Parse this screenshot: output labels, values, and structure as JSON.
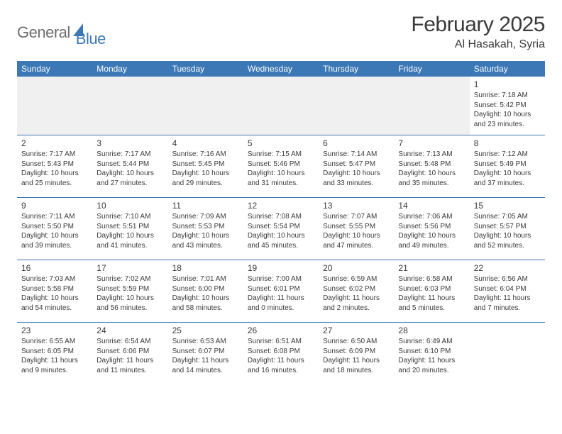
{
  "logo": {
    "part1": "General",
    "part2": "Blue"
  },
  "title": "February 2025",
  "location": "Al Hasakah, Syria",
  "colors": {
    "accent": "#3b78b5",
    "text": "#3a3a3a",
    "logo_gray": "#6e6e6e",
    "row1_bg": "#f0f0f0",
    "bg": "#ffffff"
  },
  "weekdays": [
    "Sunday",
    "Monday",
    "Tuesday",
    "Wednesday",
    "Thursday",
    "Friday",
    "Saturday"
  ],
  "weeks": [
    [
      null,
      null,
      null,
      null,
      null,
      null,
      {
        "n": "1",
        "sr": "Sunrise: 7:18 AM",
        "ss": "Sunset: 5:42 PM",
        "dl": "Daylight: 10 hours and 23 minutes."
      }
    ],
    [
      {
        "n": "2",
        "sr": "Sunrise: 7:17 AM",
        "ss": "Sunset: 5:43 PM",
        "dl": "Daylight: 10 hours and 25 minutes."
      },
      {
        "n": "3",
        "sr": "Sunrise: 7:17 AM",
        "ss": "Sunset: 5:44 PM",
        "dl": "Daylight: 10 hours and 27 minutes."
      },
      {
        "n": "4",
        "sr": "Sunrise: 7:16 AM",
        "ss": "Sunset: 5:45 PM",
        "dl": "Daylight: 10 hours and 29 minutes."
      },
      {
        "n": "5",
        "sr": "Sunrise: 7:15 AM",
        "ss": "Sunset: 5:46 PM",
        "dl": "Daylight: 10 hours and 31 minutes."
      },
      {
        "n": "6",
        "sr": "Sunrise: 7:14 AM",
        "ss": "Sunset: 5:47 PM",
        "dl": "Daylight: 10 hours and 33 minutes."
      },
      {
        "n": "7",
        "sr": "Sunrise: 7:13 AM",
        "ss": "Sunset: 5:48 PM",
        "dl": "Daylight: 10 hours and 35 minutes."
      },
      {
        "n": "8",
        "sr": "Sunrise: 7:12 AM",
        "ss": "Sunset: 5:49 PM",
        "dl": "Daylight: 10 hours and 37 minutes."
      }
    ],
    [
      {
        "n": "9",
        "sr": "Sunrise: 7:11 AM",
        "ss": "Sunset: 5:50 PM",
        "dl": "Daylight: 10 hours and 39 minutes."
      },
      {
        "n": "10",
        "sr": "Sunrise: 7:10 AM",
        "ss": "Sunset: 5:51 PM",
        "dl": "Daylight: 10 hours and 41 minutes."
      },
      {
        "n": "11",
        "sr": "Sunrise: 7:09 AM",
        "ss": "Sunset: 5:53 PM",
        "dl": "Daylight: 10 hours and 43 minutes."
      },
      {
        "n": "12",
        "sr": "Sunrise: 7:08 AM",
        "ss": "Sunset: 5:54 PM",
        "dl": "Daylight: 10 hours and 45 minutes."
      },
      {
        "n": "13",
        "sr": "Sunrise: 7:07 AM",
        "ss": "Sunset: 5:55 PM",
        "dl": "Daylight: 10 hours and 47 minutes."
      },
      {
        "n": "14",
        "sr": "Sunrise: 7:06 AM",
        "ss": "Sunset: 5:56 PM",
        "dl": "Daylight: 10 hours and 49 minutes."
      },
      {
        "n": "15",
        "sr": "Sunrise: 7:05 AM",
        "ss": "Sunset: 5:57 PM",
        "dl": "Daylight: 10 hours and 52 minutes."
      }
    ],
    [
      {
        "n": "16",
        "sr": "Sunrise: 7:03 AM",
        "ss": "Sunset: 5:58 PM",
        "dl": "Daylight: 10 hours and 54 minutes."
      },
      {
        "n": "17",
        "sr": "Sunrise: 7:02 AM",
        "ss": "Sunset: 5:59 PM",
        "dl": "Daylight: 10 hours and 56 minutes."
      },
      {
        "n": "18",
        "sr": "Sunrise: 7:01 AM",
        "ss": "Sunset: 6:00 PM",
        "dl": "Daylight: 10 hours and 58 minutes."
      },
      {
        "n": "19",
        "sr": "Sunrise: 7:00 AM",
        "ss": "Sunset: 6:01 PM",
        "dl": "Daylight: 11 hours and 0 minutes."
      },
      {
        "n": "20",
        "sr": "Sunrise: 6:59 AM",
        "ss": "Sunset: 6:02 PM",
        "dl": "Daylight: 11 hours and 2 minutes."
      },
      {
        "n": "21",
        "sr": "Sunrise: 6:58 AM",
        "ss": "Sunset: 6:03 PM",
        "dl": "Daylight: 11 hours and 5 minutes."
      },
      {
        "n": "22",
        "sr": "Sunrise: 6:56 AM",
        "ss": "Sunset: 6:04 PM",
        "dl": "Daylight: 11 hours and 7 minutes."
      }
    ],
    [
      {
        "n": "23",
        "sr": "Sunrise: 6:55 AM",
        "ss": "Sunset: 6:05 PM",
        "dl": "Daylight: 11 hours and 9 minutes."
      },
      {
        "n": "24",
        "sr": "Sunrise: 6:54 AM",
        "ss": "Sunset: 6:06 PM",
        "dl": "Daylight: 11 hours and 11 minutes."
      },
      {
        "n": "25",
        "sr": "Sunrise: 6:53 AM",
        "ss": "Sunset: 6:07 PM",
        "dl": "Daylight: 11 hours and 14 minutes."
      },
      {
        "n": "26",
        "sr": "Sunrise: 6:51 AM",
        "ss": "Sunset: 6:08 PM",
        "dl": "Daylight: 11 hours and 16 minutes."
      },
      {
        "n": "27",
        "sr": "Sunrise: 6:50 AM",
        "ss": "Sunset: 6:09 PM",
        "dl": "Daylight: 11 hours and 18 minutes."
      },
      {
        "n": "28",
        "sr": "Sunrise: 6:49 AM",
        "ss": "Sunset: 6:10 PM",
        "dl": "Daylight: 11 hours and 20 minutes."
      },
      null
    ]
  ]
}
